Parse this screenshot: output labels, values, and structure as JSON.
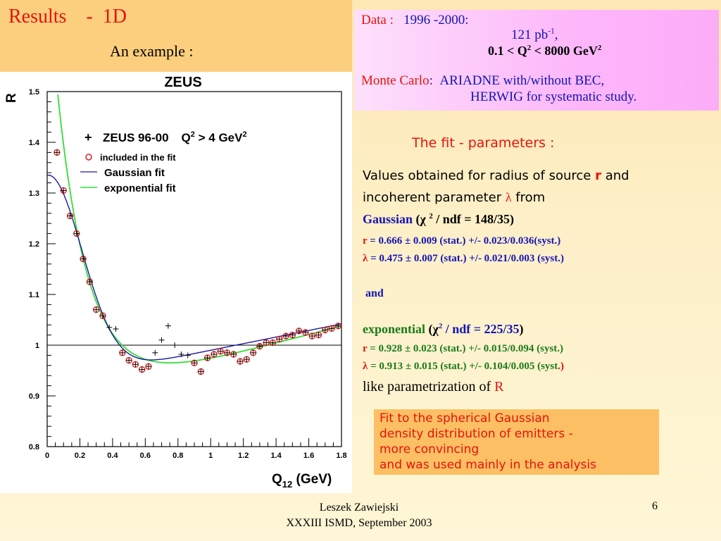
{
  "slide": {
    "title": "Results    -  1D",
    "subtitle": "An  example :",
    "data_box": {
      "data_label": "Data",
      "colon": " :",
      "years": "1996 -2000:",
      "lumi": "121 pb",
      "lumi_exp": "-1",
      "lumi_comma": ",",
      "q2_range_pre": "0.1 <  Q",
      "q2_exp": "2",
      "q2_range_post": " <  8000  GeV",
      "gev_exp": "2",
      "mc_label": "Monte Carlo",
      "mc_colon": ":",
      "mc_text1": "ARIADNE  with/without  BEC,",
      "mc_text2": "HERWIG for systematic study."
    },
    "fit_title": "The fit - parameters :",
    "values_line1_pre": "Values obtained  for radius of source ",
    "values_r": "r",
    "values_line1_post": "  and",
    "values_line2_pre": "incoherent parameter ",
    "values_lambda": "λ",
    "values_line2_post": "  from",
    "gaussian_label": "Gaussian",
    "gaussian_chi": " (χ ",
    "gaussian_chi_exp": "2",
    "gaussian_ndf": " / ndf  =  148/35)",
    "g_r_sym": "r",
    "g_r_text": "  =  0.666 ± 0.009 (stat.)  +/-  0.023/0.036(syst.)",
    "g_l_sym": "λ",
    "g_l_text": "  =  0.475 ± 0.007  (stat.)  +/-  0.021/0.003 (syst.)",
    "and": "and",
    "exp_label": "exponential",
    "exp_chi": " (χ",
    "exp_chi_exp": "2",
    "exp_ndf": " / ndf = 225/35",
    "exp_close": ")",
    "e_r_sym": "r",
    "e_r_text": "  =  0.928 ± 0.023 (stat.)  +/-  0.015/0.094 (syst.)",
    "e_l_sym": "λ",
    "e_l_text": "  =  0.913 ± 0.015  (stat.)  +/-  0.104/0.005 (syst",
    "e_l_close": ".)",
    "like_text": "like  parametrization  of  ",
    "like_R": "R",
    "fit_box": [
      "Fit to the spherical Gaussian",
      "density distribution of emitters  -",
      "more convincing",
      "and was used  mainly in  the analysis"
    ],
    "footer_author": "Leszek  Zawiejski",
    "footer_conf": "XXXIII  ISMD,  September 2003",
    "page_number": "6"
  },
  "colors": {
    "red": "#e8120c",
    "blue": "#1414b4",
    "green": "#1a7a1a",
    "gaussian_curve": "#1a1aa0",
    "exponential_curve": "#33dd33",
    "included_marker": "#e02020"
  },
  "chart_data": {
    "type": "scatter",
    "title": "ZEUS",
    "xlabel": "Q12 (GeV)",
    "ylabel": "R",
    "xlim": [
      0,
      1.8
    ],
    "ylim": [
      0.8,
      1.5
    ],
    "xticks": [
      "0",
      "0.2",
      "0.4",
      "0.6",
      "0.8",
      "1",
      "1.2",
      "1.4",
      "1.6",
      "1.8"
    ],
    "yticks": [
      "0.8",
      "0.9",
      "1",
      "1.1",
      "1.2",
      "1.3",
      "1.4",
      "1.5"
    ],
    "reference_line": 1.0,
    "legend": {
      "data_label": "ZEUS 96-00",
      "q2_label": "Q",
      "q2_exp": "2",
      "q2_cut": " > 4 GeV",
      "gev_exp": "2",
      "included_label": "included in the fit",
      "gaussian_label": "Gaussian fit",
      "exponential_label": "exponential fit"
    },
    "points_included": [
      [
        0.06,
        1.38
      ],
      [
        0.1,
        1.305
      ],
      [
        0.14,
        1.255
      ],
      [
        0.18,
        1.22
      ],
      [
        0.22,
        1.17
      ],
      [
        0.26,
        1.125
      ],
      [
        0.3,
        1.07
      ],
      [
        0.34,
        1.058
      ],
      [
        0.46,
        0.985
      ],
      [
        0.5,
        0.97
      ],
      [
        0.54,
        0.962
      ],
      [
        0.58,
        0.952
      ],
      [
        0.62,
        0.958
      ],
      [
        0.9,
        0.965
      ],
      [
        0.94,
        0.948
      ],
      [
        0.98,
        0.975
      ],
      [
        1.02,
        0.982
      ],
      [
        1.06,
        0.988
      ],
      [
        1.1,
        0.985
      ],
      [
        1.14,
        0.982
      ],
      [
        1.18,
        0.968
      ],
      [
        1.22,
        0.972
      ],
      [
        1.26,
        0.985
      ],
      [
        1.3,
        0.998
      ],
      [
        1.34,
        1.005
      ],
      [
        1.38,
        1.005
      ],
      [
        1.42,
        1.012
      ],
      [
        1.46,
        1.018
      ],
      [
        1.5,
        1.02
      ],
      [
        1.54,
        1.028
      ],
      [
        1.58,
        1.025
      ],
      [
        1.62,
        1.018
      ],
      [
        1.66,
        1.02
      ],
      [
        1.7,
        1.03
      ],
      [
        1.74,
        1.033
      ],
      [
        1.78,
        1.038
      ]
    ],
    "points_excluded": [
      [
        0.38,
        1.035
      ],
      [
        0.42,
        1.032
      ],
      [
        0.66,
        0.985
      ],
      [
        0.7,
        1.01
      ],
      [
        0.74,
        1.038
      ],
      [
        0.78,
        1.0
      ],
      [
        0.82,
        0.982
      ],
      [
        0.86,
        0.98
      ]
    ],
    "gaussian_fit": {
      "r": 0.666,
      "lambda": 0.475
    },
    "exponential_fit": {
      "r": 0.928,
      "lambda": 0.913
    }
  }
}
